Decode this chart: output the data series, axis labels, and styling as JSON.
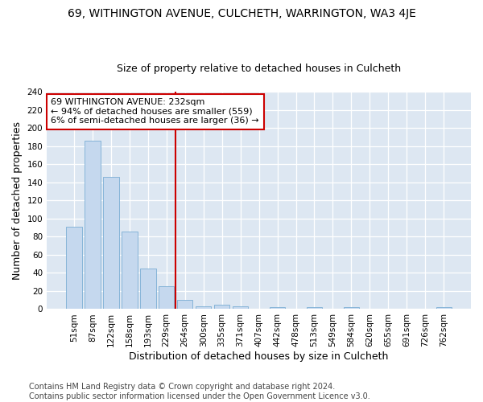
{
  "title": "69, WITHINGTON AVENUE, CULCHETH, WARRINGTON, WA3 4JE",
  "subtitle": "Size of property relative to detached houses in Culcheth",
  "xlabel": "Distribution of detached houses by size in Culcheth",
  "ylabel": "Number of detached properties",
  "footer": "Contains HM Land Registry data © Crown copyright and database right 2024.\nContains public sector information licensed under the Open Government Licence v3.0.",
  "categories": [
    "51sqm",
    "87sqm",
    "122sqm",
    "158sqm",
    "193sqm",
    "229sqm",
    "264sqm",
    "300sqm",
    "335sqm",
    "371sqm",
    "407sqm",
    "442sqm",
    "478sqm",
    "513sqm",
    "549sqm",
    "584sqm",
    "620sqm",
    "655sqm",
    "691sqm",
    "726sqm",
    "762sqm"
  ],
  "values": [
    91,
    186,
    146,
    86,
    45,
    25,
    10,
    3,
    5,
    3,
    0,
    2,
    0,
    2,
    0,
    2,
    0,
    0,
    0,
    0,
    2
  ],
  "bar_color": "#c5d8ee",
  "bar_edge_color": "#7aadd4",
  "vline_x": 5.5,
  "vline_color": "#cc0000",
  "annotation_text": "69 WITHINGTON AVENUE: 232sqm\n← 94% of detached houses are smaller (559)\n6% of semi-detached houses are larger (36) →",
  "annotation_box_color": "#cc0000",
  "annotation_fill": "#ffffff",
  "ylim": [
    0,
    240
  ],
  "yticks": [
    0,
    20,
    40,
    60,
    80,
    100,
    120,
    140,
    160,
    180,
    200,
    220,
    240
  ],
  "plot_bg_color": "#dde7f2",
  "title_fontsize": 10,
  "subtitle_fontsize": 9,
  "label_fontsize": 9,
  "tick_fontsize": 7.5,
  "annotation_fontsize": 8,
  "footer_fontsize": 7
}
